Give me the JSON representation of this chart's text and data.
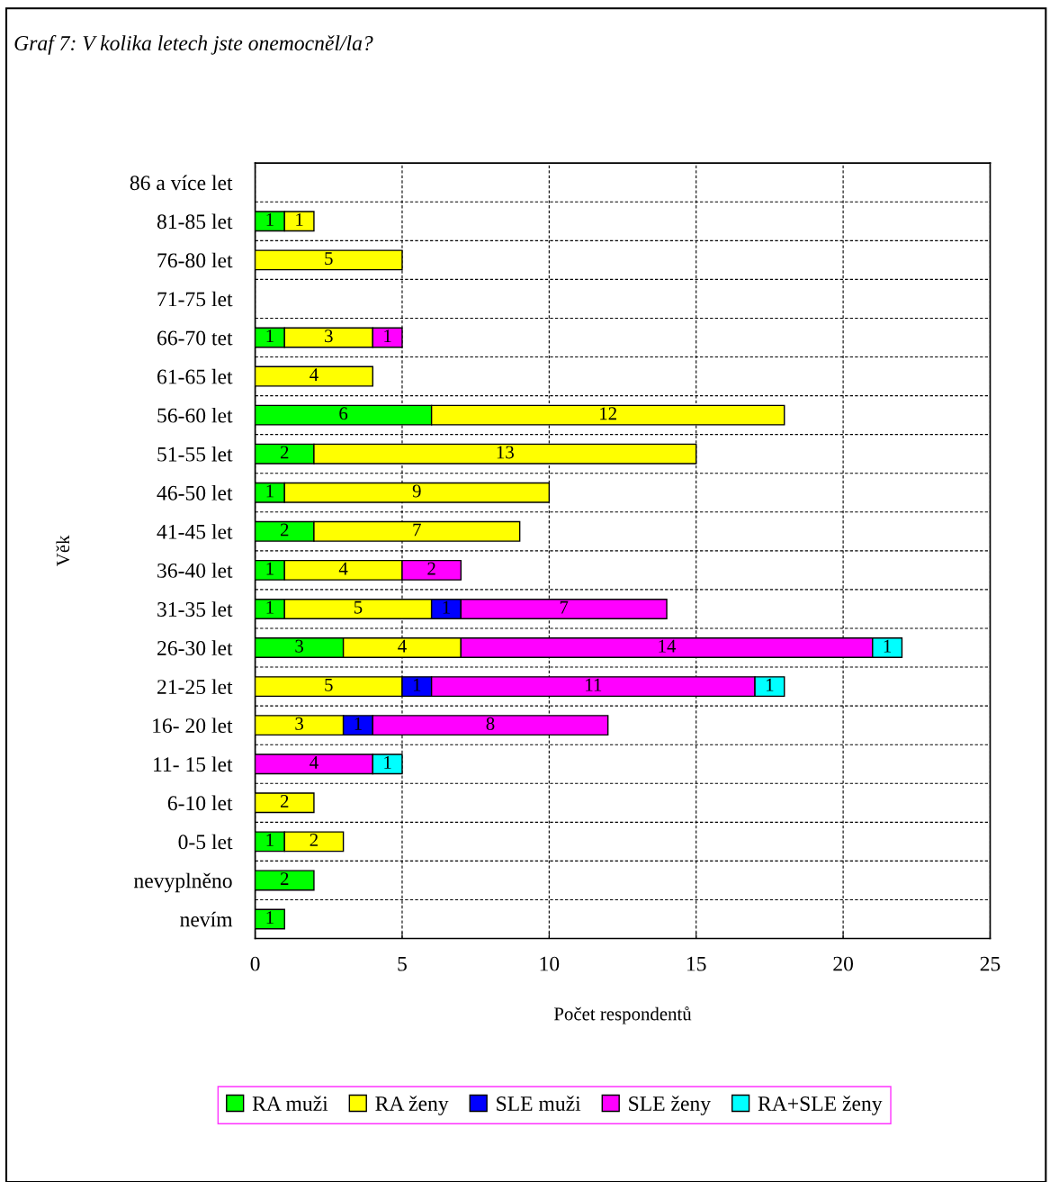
{
  "chart_data": {
    "type": "bar",
    "orientation": "horizontal",
    "stacked": true,
    "data_labels": true,
    "title": "Graf 7: V kolika letech jste onemocněl/la?",
    "xlabel": "Počet respondentů",
    "ylabel": "Věk",
    "categories": [
      "86 a více let",
      "81-85 let",
      "76-80 let",
      "71-75 let",
      "66-70 tet",
      "61-65 let",
      "56-60 let",
      "51-55 let",
      "46-50 let",
      "41-45 let",
      "36-40 let",
      "31-35 let",
      "26-30 let",
      "21-25 let",
      "16- 20 let",
      "11- 15 let",
      "6-10 let",
      "0-5 let",
      "nevyplněno",
      "nevím"
    ],
    "series": [
      {
        "name": "RA muži",
        "color": "#00ff00",
        "values": [
          null,
          1,
          null,
          null,
          1,
          null,
          6,
          2,
          1,
          2,
          1,
          1,
          3,
          null,
          null,
          null,
          null,
          1,
          2,
          1
        ]
      },
      {
        "name": "RA ženy",
        "color": "#ffff00",
        "values": [
          null,
          1,
          5,
          null,
          3,
          4,
          12,
          13,
          9,
          7,
          4,
          5,
          4,
          5,
          3,
          null,
          2,
          2,
          null,
          null
        ]
      },
      {
        "name": "SLE muži",
        "color": "#0000ff",
        "values": [
          null,
          null,
          null,
          null,
          null,
          null,
          null,
          null,
          null,
          null,
          null,
          1,
          null,
          1,
          1,
          null,
          null,
          null,
          null,
          null
        ]
      },
      {
        "name": "SLE ženy",
        "color": "#ff00ff",
        "values": [
          null,
          null,
          null,
          null,
          1,
          null,
          null,
          null,
          null,
          null,
          2,
          7,
          14,
          11,
          8,
          4,
          null,
          null,
          null,
          null
        ]
      },
      {
        "name": "RA+SLE ženy",
        "color": "#00ffff",
        "values": [
          null,
          null,
          null,
          null,
          null,
          null,
          null,
          null,
          null,
          null,
          null,
          null,
          1,
          1,
          null,
          1,
          null,
          null,
          null,
          null
        ]
      }
    ],
    "xlim": [
      0,
      25
    ],
    "xticks": [
      0,
      5,
      10,
      15,
      20,
      25
    ],
    "grid": true,
    "legend": "bottom"
  }
}
